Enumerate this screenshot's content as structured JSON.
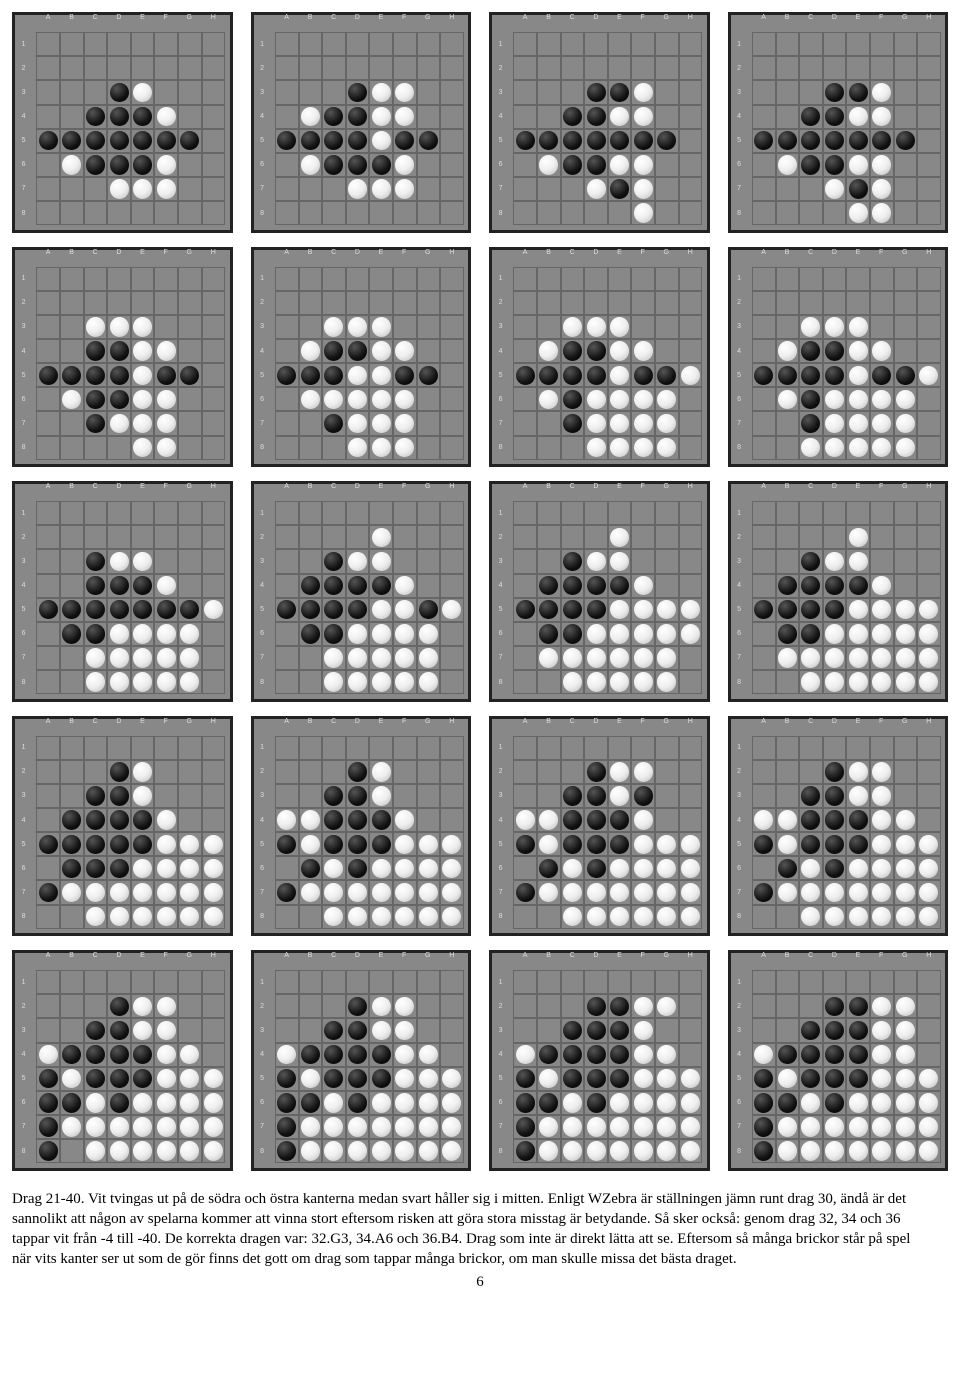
{
  "columns": [
    "A",
    "B",
    "C",
    "D",
    "E",
    "F",
    "G",
    "H"
  ],
  "rows": [
    "1",
    "2",
    "3",
    "4",
    "5",
    "6",
    "7",
    "8"
  ],
  "cell_background": "#888888",
  "grid_line": "#666666",
  "board_border": "#222222",
  "disc_black": "#111111",
  "disc_white": "#eeeeee",
  "caption_line1": "Drag 21-40. Vit tvingas ut på de södra och östra kanterna medan svart håller sig i mitten. Enligt WZebra är ställningen jämn runt drag 30, ändå är det sannolikt att någon av spelarna kommer att vinna stort eftersom risken att göra stora misstag är betydande. Så sker också: genom drag 32, 34 och 36 tappar vit från -4 till -40. De korrekta dragen var: 32.G3, 34.A6 och 36.B4. Drag som inte är direkt lätta att se. Eftersom så många brickor står på spel när vits kanter ser ut som de gör finns det gott om drag som tappar många brickor, om man skulle missa det bästa draget.",
  "page_number": "6",
  "boards": [
    [
      "........",
      "........",
      "...BW...",
      "..BBBW..",
      "BBBBBBB.",
      ".WBBBW..",
      "...WWW..",
      "........"
    ],
    [
      "........",
      "........",
      "...BWW..",
      ".WBBWW..",
      "BBBBWBB.",
      ".WBBBW..",
      "...WWW..",
      "........"
    ],
    [
      "........",
      "........",
      "...BBW..",
      "..BBWW..",
      "BBBBBBB.",
      ".WBBWW..",
      "...WBW..",
      ".....W.."
    ],
    [
      "........",
      "........",
      "...BBW..",
      "..BBWW..",
      "BBBBBBB.",
      ".WBBWW..",
      "...WBW..",
      "....WW.."
    ],
    [
      "........",
      "........",
      "..WWW...",
      "..BBWW..",
      "BBBBWBB.",
      ".WBBWW..",
      "..BWWW..",
      "....WW.."
    ],
    [
      "........",
      "........",
      "..WWW...",
      ".WBBWW..",
      "BBBWWBB.",
      ".WWWWW..",
      "..BWWW..",
      "...WWW.."
    ],
    [
      "........",
      "........",
      "..WWW...",
      ".WBBWW..",
      "BBBBWBBW",
      ".WBWWWW.",
      "..BWWWW.",
      "...WWWW."
    ],
    [
      "........",
      "........",
      "..WWW...",
      ".WBBWW..",
      "BBBBWBBW",
      ".WBWWWW.",
      "..BWWWW.",
      "..WWWWW."
    ],
    [
      "........",
      "........",
      "..BWW...",
      "..BBBW..",
      "BBBBBBBW",
      ".BBWWWW.",
      "..WWWWW.",
      "..WWWWW."
    ],
    [
      "........",
      "....W...",
      "..BWW...",
      ".BBBBW..",
      "BBBBWWBW",
      ".BBWWWW.",
      "..WWWWW.",
      "..WWWWW."
    ],
    [
      "........",
      "....W...",
      "..BWW...",
      ".BBBBW..",
      "BBBBWWWW",
      ".BBWWWWW",
      ".WWWWWW.",
      "..WWWWW."
    ],
    [
      "........",
      "....W...",
      "..BWW...",
      ".BBBBW..",
      "BBBBWWWW",
      ".BBWWWWW",
      ".WWWWWWW",
      "..WWWWWW"
    ],
    [
      "........",
      "...BW...",
      "..BBW...",
      ".BBBBW..",
      "BBBBBWWW",
      ".BBBWWWW",
      "BWWWWWWW",
      "..WWWWWW"
    ],
    [
      "........",
      "...BW...",
      "..BBW...",
      "WWBBBW..",
      "BWBBBWWW",
      ".BWBWWWW",
      "BWWWWWWW",
      "..WWWWWW"
    ],
    [
      "........",
      "...BWW..",
      "..BBWB..",
      "WWBBBW..",
      "BWBBBWWW",
      ".BWBWWWW",
      "BWWWWWWW",
      "..WWWWWW"
    ],
    [
      "........",
      "...BWW..",
      "..BBWW..",
      "WWBBBWW.",
      "BWBBBWWW",
      ".BWBWWWW",
      "BWWWWWWW",
      "..WWWWWW"
    ],
    [
      "........",
      "...BWW..",
      "..BBWW..",
      "WBBBBWW.",
      "BWBBBWWW",
      "BBWBWWWW",
      "BWWWWWWW",
      "B.WWWWWW"
    ],
    [
      "........",
      "...BWW..",
      "..BBWW..",
      "WBBBBWW.",
      "BWBBBWWW",
      "BBWBWWWW",
      "BWWWWWWW",
      "BWWWWWWW"
    ],
    [
      "........",
      "...BBWW.",
      "..BBBW..",
      "WBBBBWW.",
      "BWBBBWWW",
      "BBWBWWWW",
      "BWWWWWWW",
      "BWWWWWWW"
    ],
    [
      "........",
      "...BBWW.",
      "..BBBWW.",
      "WBBBBWW.",
      "BWBBBWWW",
      "BBWBWWWW",
      "BWWWWWWW",
      "BWWWWWWW"
    ]
  ]
}
